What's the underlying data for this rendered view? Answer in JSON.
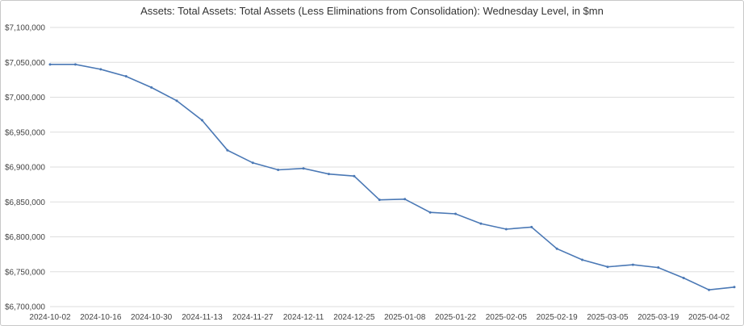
{
  "chart_data": {
    "type": "line",
    "title": "Assets: Total Assets: Total Assets (Less Eliminations from Consolidation): Wednesday Level, in $mn",
    "xlabel": "",
    "ylabel": "",
    "ylim": [
      6700000,
      7100000
    ],
    "yticks": [
      6700000,
      6750000,
      6800000,
      6850000,
      6900000,
      6950000,
      7000000,
      7050000,
      7100000
    ],
    "ytick_labels": [
      "$6,700,000",
      "$6,750,000",
      "$6,800,000",
      "$6,850,000",
      "$6,900,000",
      "$6,950,000",
      "$7,000,000",
      "$7,050,000",
      "$7,100,000"
    ],
    "xtick_labels": [
      "2024-10-02",
      "2024-10-16",
      "2024-10-30",
      "2024-11-13",
      "2024-11-27",
      "2024-12-11",
      "2024-12-25",
      "2025-01-08",
      "2025-01-22",
      "2025-02-05",
      "2025-02-19",
      "2025-03-05",
      "2025-03-19",
      "2025-04-02"
    ],
    "grid": true,
    "legend": "none",
    "line_color": "#4a78b5",
    "x": [
      "2024-10-02",
      "2024-10-09",
      "2024-10-16",
      "2024-10-23",
      "2024-10-30",
      "2024-11-06",
      "2024-11-13",
      "2024-11-20",
      "2024-11-27",
      "2024-12-04",
      "2024-12-11",
      "2024-12-18",
      "2024-12-25",
      "2025-01-01",
      "2025-01-08",
      "2025-01-15",
      "2025-01-22",
      "2025-01-29",
      "2025-02-05",
      "2025-02-12",
      "2025-02-19",
      "2025-02-26",
      "2025-03-05",
      "2025-03-12",
      "2025-03-19",
      "2025-03-26",
      "2025-04-02",
      "2025-04-09"
    ],
    "values": [
      7047000,
      7047000,
      7040000,
      7030000,
      7014000,
      6995000,
      6967000,
      6924000,
      6906000,
      6896000,
      6898000,
      6890000,
      6887000,
      6853000,
      6854000,
      6835000,
      6833000,
      6819000,
      6811000,
      6814000,
      6783000,
      6767000,
      6757000,
      6760000,
      6756000,
      6741000,
      6724000,
      6728000
    ]
  }
}
